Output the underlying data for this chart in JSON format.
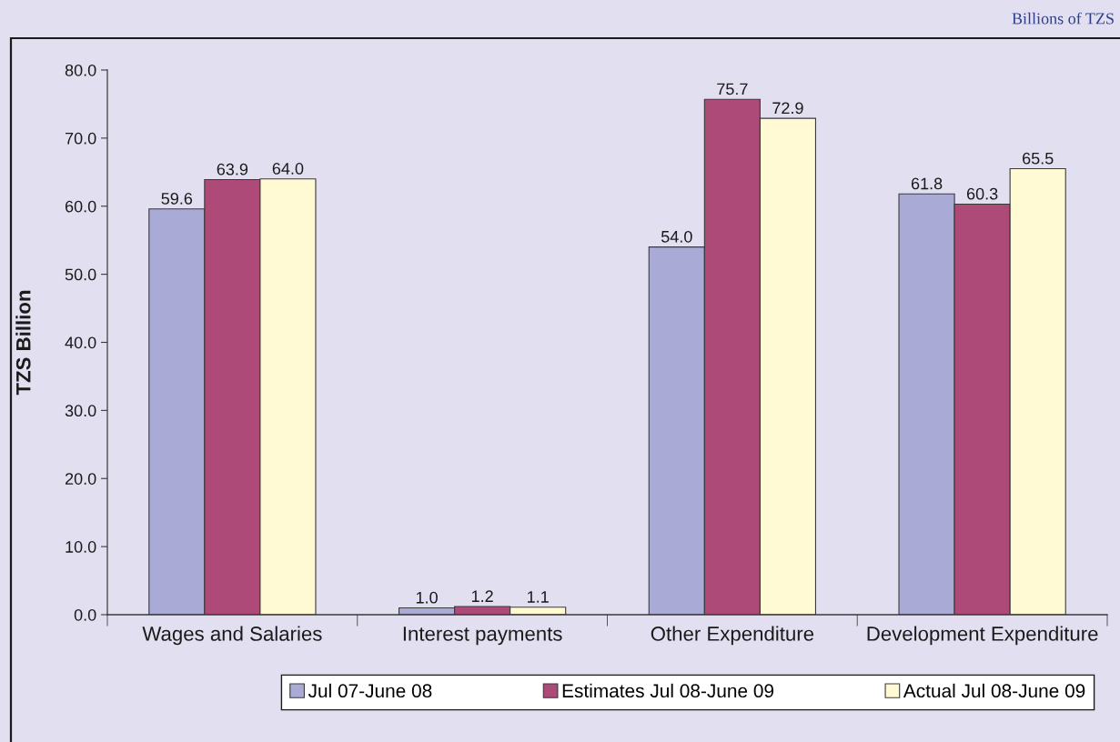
{
  "chart_data": {
    "type": "bar",
    "ylabel": "TZS Billion",
    "annotations": [
      "Billions of TZS"
    ],
    "categories": [
      "Wages and Salaries",
      "Interest payments",
      "Other Expenditure",
      "Development Expenditure"
    ],
    "series": [
      {
        "name": "Jul 07-June 08",
        "color": "#aaaad6",
        "values": [
          59.6,
          1.0,
          54.0,
          61.8
        ],
        "value_labels": [
          "59.6",
          "1.0",
          "54.0",
          "61.8"
        ]
      },
      {
        "name": "Estimates Jul 08-June 09",
        "color": "#ad4a78",
        "values": [
          63.9,
          1.2,
          75.7,
          60.3
        ],
        "value_labels": [
          "63.9",
          "1.2",
          "75.7",
          "60.3"
        ]
      },
      {
        "name": "Actual Jul 08-June 09",
        "color": "#fffad4",
        "values": [
          64.0,
          1.1,
          72.9,
          65.5
        ],
        "value_labels": [
          "64.0",
          "1.1",
          "72.9",
          "65.5"
        ]
      }
    ],
    "ylim": [
      0,
      80
    ],
    "yticks": [
      {
        "value": 0,
        "label": "0.0"
      },
      {
        "value": 10,
        "label": "10.0"
      },
      {
        "value": 20,
        "label": "20.0"
      },
      {
        "value": 30,
        "label": "30.0"
      },
      {
        "value": 40,
        "label": "40.0"
      },
      {
        "value": 50,
        "label": "50.0"
      },
      {
        "value": 60,
        "label": "60.0"
      },
      {
        "value": 70,
        "label": "70.0"
      },
      {
        "value": 80,
        "label": "80.0"
      }
    ],
    "legend": "bottom"
  }
}
